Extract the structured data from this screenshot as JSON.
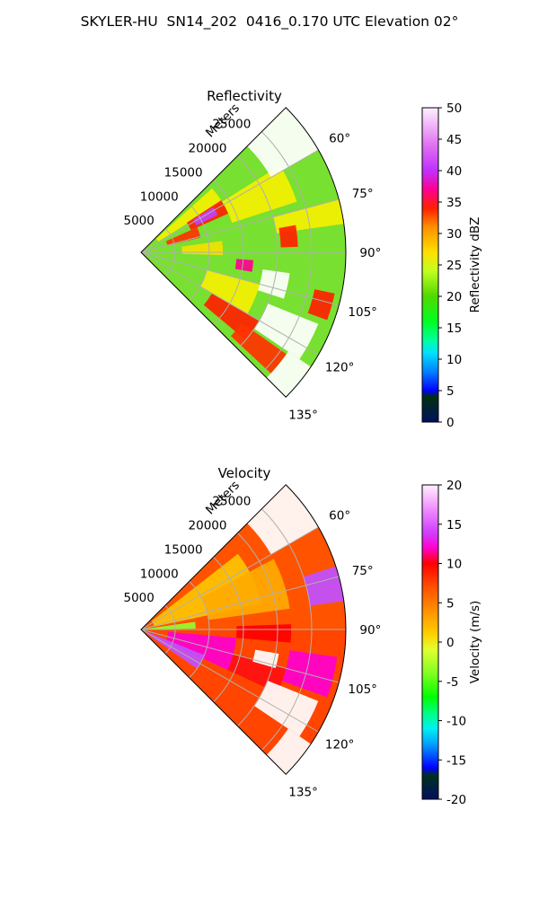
{
  "title": "SKYLER-HU  SN14_202  0416_0.170 UTC Elevation 02°",
  "chart_data": [
    {
      "type": "heatmap",
      "subtype": "polar-sector (PPI)",
      "title": "Reflectivity",
      "radial_label": "Meters",
      "radial_ticks": [
        5000,
        10000,
        15000,
        20000,
        25000
      ],
      "rlim": [
        0,
        30000
      ],
      "angular_range": [
        45,
        135
      ],
      "angular_ticks": [
        "60°",
        "75°",
        "90°",
        "105°",
        "120°",
        "135°"
      ],
      "grid": true,
      "colorbar": {
        "label": "Reflectivity dBZ",
        "range": [
          0,
          50
        ],
        "ticks": [
          0,
          5,
          10,
          15,
          20,
          25,
          30,
          35,
          40,
          45,
          50
        ],
        "colormap": [
          {
            "value": 0,
            "color": "#001060"
          },
          {
            "value": 4,
            "color": "#003010"
          },
          {
            "value": 5,
            "color": "#0000ff"
          },
          {
            "value": 8,
            "color": "#0080ff"
          },
          {
            "value": 11,
            "color": "#00e0ff"
          },
          {
            "value": 13,
            "color": "#00ffa0"
          },
          {
            "value": 16,
            "color": "#00ff20"
          },
          {
            "value": 20,
            "color": "#50d800"
          },
          {
            "value": 24,
            "color": "#c0ff20"
          },
          {
            "value": 27,
            "color": "#ffe000"
          },
          {
            "value": 31,
            "color": "#ff9000"
          },
          {
            "value": 34,
            "color": "#ff2000"
          },
          {
            "value": 37,
            "color": "#ff0090"
          },
          {
            "value": 40,
            "color": "#c030ff"
          },
          {
            "value": 44,
            "color": "#e070f0"
          },
          {
            "value": 50,
            "color": "#fff0ff"
          }
        ]
      },
      "field": {
        "azimuth_start": 45,
        "azimuth_end": 135,
        "range_max": 30000,
        "background": "#78e030",
        "patches": [
          {
            "az": [
              48,
              58
            ],
            "r": [
              3000,
              14000
            ],
            "color": "#f5f000"
          },
          {
            "az": [
              57,
              66
            ],
            "r": [
              8000,
              14000
            ],
            "color": "#ff2000"
          },
          {
            "az": [
              58,
              64
            ],
            "r": [
              9000,
              12500
            ],
            "color": "#c040ff"
          },
          {
            "az": [
              66,
              76
            ],
            "r": [
              4000,
              9000
            ],
            "color": "#ff3300"
          },
          {
            "az": [
              58,
              72
            ],
            "r": [
              14000,
              24000
            ],
            "color": "#f5f000"
          },
          {
            "az": [
              75,
              82
            ],
            "r": [
              20000,
              30000
            ],
            "color": "#f5f000"
          },
          {
            "az": [
              80,
              88
            ],
            "r": [
              20500,
              23000
            ],
            "color": "#ff2000"
          },
          {
            "az": [
              82,
              92
            ],
            "r": [
              6000,
              12000
            ],
            "color": "#f5e000"
          },
          {
            "az": [
              94,
              100
            ],
            "r": [
              14000,
              16500
            ],
            "color": "#ff0090"
          },
          {
            "az": [
              102,
              110
            ],
            "r": [
              26000,
              29000
            ],
            "color": "#ff2000"
          },
          {
            "az": [
              105,
              120
            ],
            "r": [
              10000,
              18000
            ],
            "color": "#f5f000"
          },
          {
            "az": [
              120,
              130
            ],
            "r": [
              12000,
              20000
            ],
            "color": "#ff2000"
          },
          {
            "az": [
              125,
              133
            ],
            "r": [
              18000,
              26000
            ],
            "color": "#ff3300"
          },
          {
            "az": [
              112,
              124
            ],
            "r": [
              20000,
              28000
            ],
            "color": "#ffffff"
          },
          {
            "az": [
              98,
              108
            ],
            "r": [
              18000,
              22000
            ],
            "color": "#ffffff"
          },
          {
            "az": [
              45,
              60
            ],
            "r": [
              22000,
              30000
            ],
            "color": "#ffffff"
          },
          {
            "az": [
              124,
              135
            ],
            "r": [
              26000,
              30000
            ],
            "color": "#ffffff"
          }
        ]
      }
    },
    {
      "type": "heatmap",
      "subtype": "polar-sector (PPI)",
      "title": "Velocity",
      "radial_label": "Meters",
      "radial_ticks": [
        5000,
        10000,
        15000,
        20000,
        25000
      ],
      "rlim": [
        0,
        30000
      ],
      "angular_range": [
        45,
        135
      ],
      "angular_ticks": [
        "60°",
        "75°",
        "90°",
        "105°",
        "120°",
        "135°"
      ],
      "grid": true,
      "colorbar": {
        "label": "Velocity (m/s)",
        "range": [
          -20,
          20
        ],
        "ticks": [
          -20,
          -15,
          -10,
          -5,
          0,
          5,
          10,
          15,
          20
        ],
        "colormap": [
          {
            "value": -20,
            "color": "#001060"
          },
          {
            "value": -17,
            "color": "#003020"
          },
          {
            "value": -16,
            "color": "#0000ff"
          },
          {
            "value": -13,
            "color": "#00a0ff"
          },
          {
            "value": -11,
            "color": "#00f0f0"
          },
          {
            "value": -9,
            "color": "#00ff80"
          },
          {
            "value": -7,
            "color": "#00ff00"
          },
          {
            "value": -4,
            "color": "#80ff20"
          },
          {
            "value": -1,
            "color": "#e0ff30"
          },
          {
            "value": 1,
            "color": "#ffd000"
          },
          {
            "value": 4,
            "color": "#ff9000"
          },
          {
            "value": 7,
            "color": "#ff5000"
          },
          {
            "value": 10,
            "color": "#ff0000"
          },
          {
            "value": 12,
            "color": "#ff00d0"
          },
          {
            "value": 14,
            "color": "#d040ff"
          },
          {
            "value": 17,
            "color": "#f090ff"
          },
          {
            "value": 20,
            "color": "#fff0ff"
          }
        ]
      },
      "field": {
        "azimuth_start": 45,
        "azimuth_end": 135,
        "range_max": 30000,
        "background": "#ff4500",
        "patches": [
          {
            "az": [
              45,
              90
            ],
            "r": [
              0,
              30000
            ],
            "color": "#ff5500"
          },
          {
            "az": [
              52,
              78
            ],
            "r": [
              2000,
              18000
            ],
            "color": "#ffc400"
          },
          {
            "az": [
              62,
              82
            ],
            "r": [
              10000,
              22000
            ],
            "color": "#ffaa00"
          },
          {
            "az": [
              82,
              89
            ],
            "r": [
              0,
              8000
            ],
            "color": "#90ff30"
          },
          {
            "az": [
              95,
              115
            ],
            "r": [
              4000,
              14000
            ],
            "color": "#ff00d0"
          },
          {
            "az": [
              112,
              125
            ],
            "r": [
              1000,
              10000
            ],
            "color": "#c050ff"
          },
          {
            "az": [
              105,
              115
            ],
            "r": [
              14000,
              22000
            ],
            "color": "#ff1010"
          },
          {
            "az": [
              98,
              110
            ],
            "r": [
              22000,
              29000
            ],
            "color": "#ff00d0"
          },
          {
            "az": [
              72,
              82
            ],
            "r": [
              25000,
              30000
            ],
            "color": "#c050ff"
          },
          {
            "az": [
              88,
              95
            ],
            "r": [
              14000,
              22000
            ],
            "color": "#ff0000"
          },
          {
            "az": [
              112,
              124
            ],
            "r": [
              20000,
              28000
            ],
            "color": "#ffffff"
          },
          {
            "az": [
              45,
              60
            ],
            "r": [
              22000,
              30000
            ],
            "color": "#ffffff"
          },
          {
            "az": [
              124,
              135
            ],
            "r": [
              26000,
              30000
            ],
            "color": "#ffffff"
          },
          {
            "az": [
              100,
              106
            ],
            "r": [
              17000,
              20500
            ],
            "color": "#ffffff"
          }
        ]
      }
    }
  ]
}
